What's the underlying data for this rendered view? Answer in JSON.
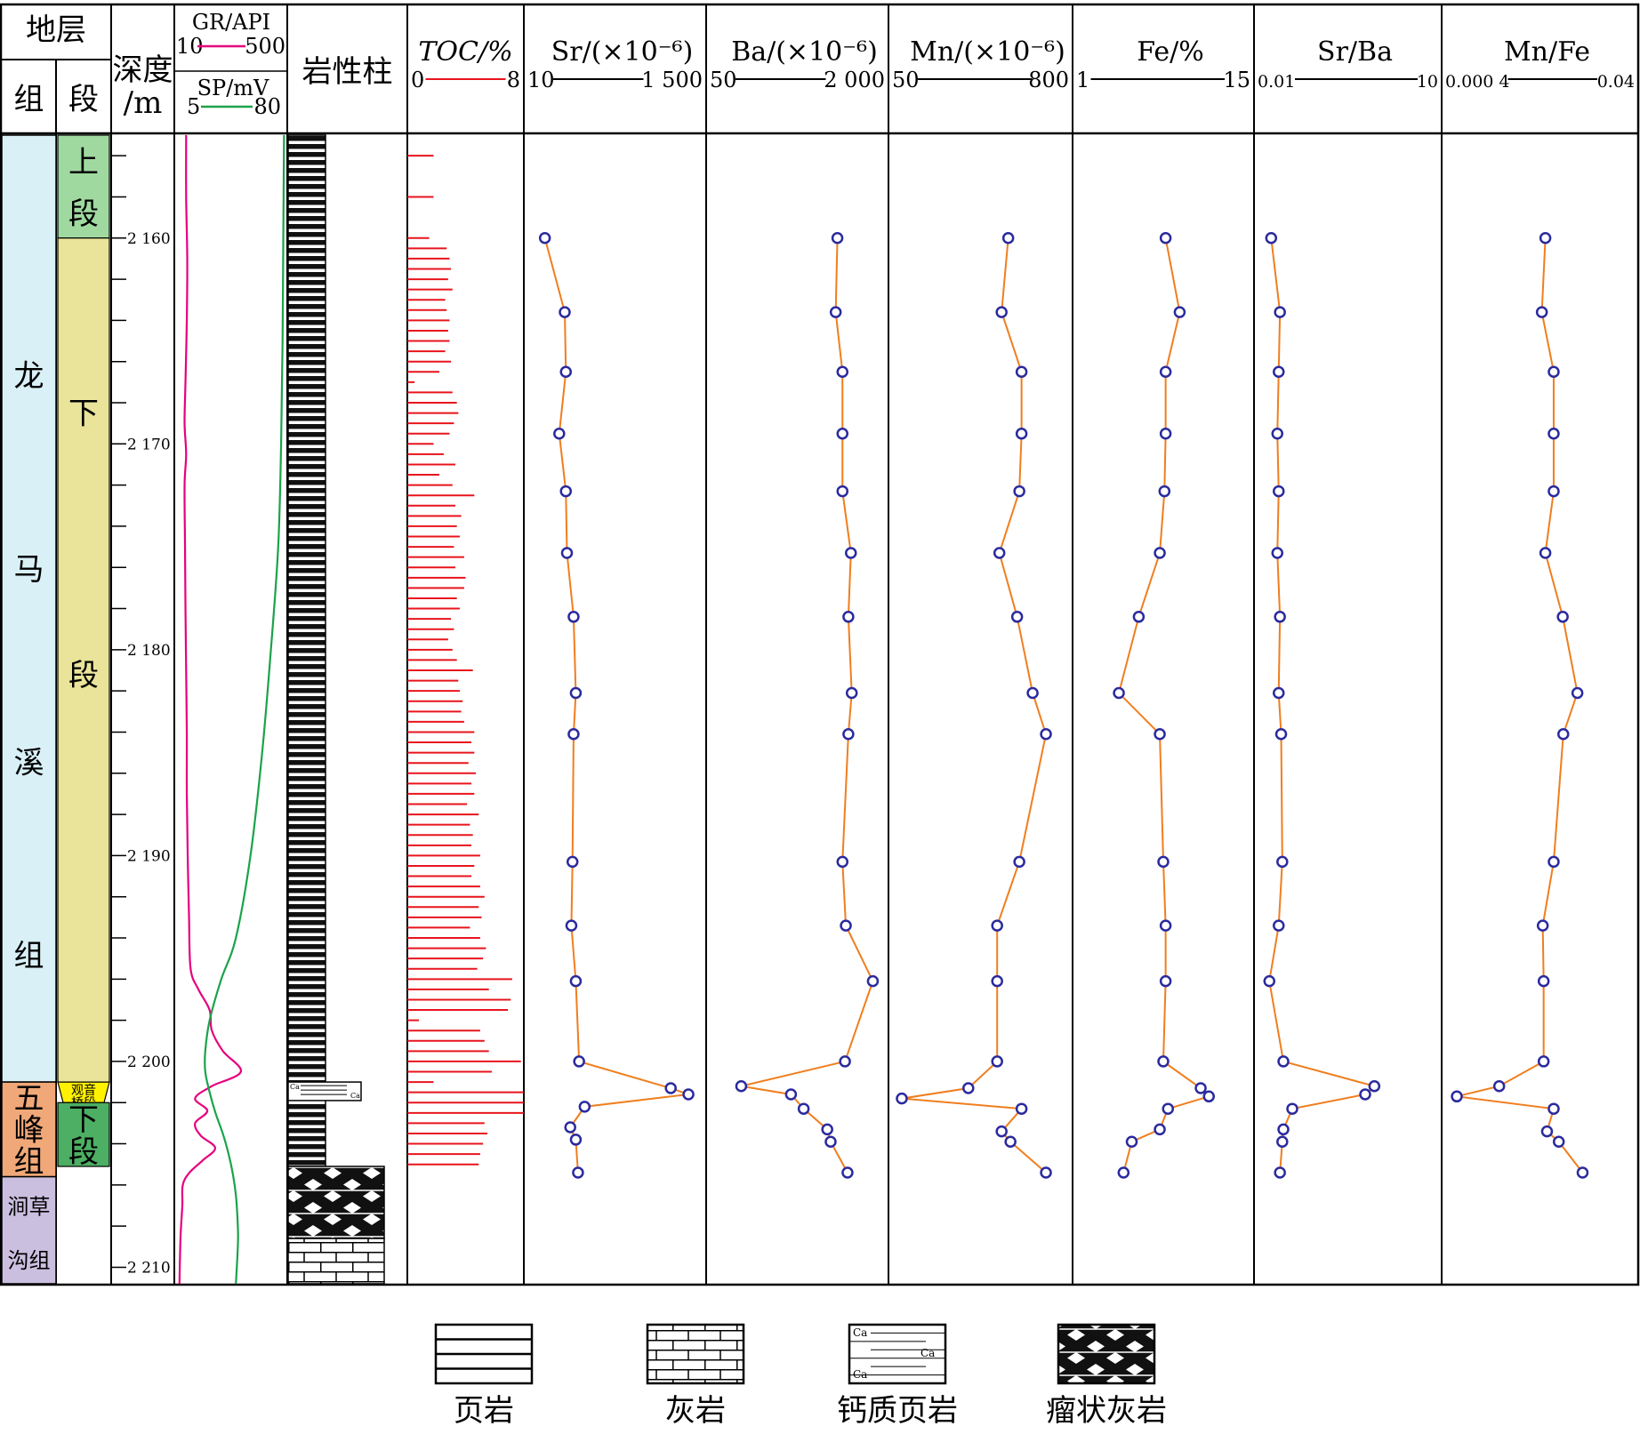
{
  "header": {
    "strata": "地层",
    "formation": "组",
    "member": "段",
    "depth": [
      "深度",
      "/m"
    ],
    "lithology_column": "岩性柱"
  },
  "logs": {
    "gr": {
      "label": "GR/API",
      "min": "10",
      "max": "500",
      "color": "#e6007e"
    },
    "sp": {
      "label": "SP/mV",
      "min": "5",
      "max": "80",
      "color": "#1aa34a"
    }
  },
  "tracks": [
    {
      "key": "toc",
      "label": "TOC/%",
      "min": "0",
      "max": "8",
      "color": "#e8141c"
    },
    {
      "key": "sr",
      "label": "Sr/(×10⁻⁶)",
      "min": "10",
      "max": "1 500"
    },
    {
      "key": "ba",
      "label": "Ba/(×10⁻⁶)",
      "min": "50",
      "max": "2 000"
    },
    {
      "key": "mn",
      "label": "Mn/(×10⁻⁶)",
      "min": "50",
      "max": "800"
    },
    {
      "key": "fe",
      "label": "Fe/%",
      "min": "1",
      "max": "15"
    },
    {
      "key": "srba",
      "label": "Sr/Ba",
      "min": "0.01",
      "max": "10"
    },
    {
      "key": "mnfe",
      "label": "Mn/Fe",
      "min": "0.000 4",
      "max": "0.04"
    }
  ],
  "colors": {
    "line": "#f07e1e",
    "marker": "#2a2a9e",
    "formation_longmaxi": "#d9f0f7",
    "formation_wufeng": "#f0a878",
    "formation_jiancaogou": "#cbbfe0",
    "member_upper": "#9fd9a0",
    "member_lower": "#e9e499",
    "member_guanyinqiao": "#fff200",
    "member_wufeng_lower": "#4caf63"
  },
  "stratigraphy": {
    "formations": [
      {
        "name": "龙马溪组",
        "chars": [
          "龙",
          "马",
          "溪",
          "组"
        ],
        "top": 2155,
        "base": 2201
      },
      {
        "name": "五峰组",
        "chars": [
          "五",
          "峰",
          "组"
        ],
        "top": 2201,
        "base": 2205.6
      },
      {
        "name": "涧草沟组",
        "chars": [
          "涧草",
          "沟组"
        ],
        "top": 2205.6,
        "base": 2210.8
      }
    ],
    "members": [
      {
        "name": "上段",
        "chars": [
          "上",
          "段"
        ],
        "top": 2155,
        "base": 2160
      },
      {
        "name": "下段",
        "chars": [
          "下",
          "段"
        ],
        "top": 2160,
        "base": 2201
      },
      {
        "name": "观音桥段",
        "chars": [
          "观音",
          "桥段"
        ],
        "top": 2201,
        "base": 2202
      },
      {
        "name": "下段",
        "chars": [
          "下",
          "段"
        ],
        "top": 2202,
        "base": 2205.1
      }
    ]
  },
  "depth_axis": {
    "min": 2155,
    "max": 2210.8,
    "labels": [
      "2 160",
      "2 170",
      "2 180",
      "2 190",
      "2 200",
      "2 210"
    ],
    "label_values": [
      2160,
      2170,
      2180,
      2190,
      2200,
      2210
    ],
    "minor_step": 2
  },
  "chart_data": [
    {
      "type": "line",
      "title": "GR/API",
      "xlim": [
        10,
        500
      ],
      "series": [
        {
          "name": "GR/API",
          "depth": [
            2155,
            2158,
            2161,
            2164,
            2167,
            2169,
            2170.5,
            2172,
            2175,
            2178,
            2181,
            2184,
            2187,
            2190,
            2193,
            2195.5,
            2196.5,
            2197.5,
            2198.5,
            2199.5,
            2200.5,
            2201.2,
            2201.8,
            2202.4,
            2203,
            2203.6,
            2204.2,
            2204.8,
            2205.4,
            2206,
            2207,
            2208.5,
            2210.8
          ],
          "values": [
            55,
            55,
            60,
            58,
            52,
            48,
            55,
            48,
            50,
            52,
            55,
            58,
            58,
            62,
            68,
            75,
            110,
            160,
            170,
            220,
            300,
            170,
            95,
            150,
            95,
            120,
            185,
            130,
            70,
            40,
            38,
            30,
            25
          ]
        }
      ]
    },
    {
      "type": "line",
      "title": "SP/mV",
      "xlim": [
        5,
        80
      ],
      "series": [
        {
          "name": "SP/mV",
          "depth": [
            2155,
            2160,
            2165,
            2170,
            2175,
            2180,
            2185,
            2190,
            2194,
            2196,
            2198,
            2199.5,
            2200.5,
            2201.5,
            2202.5,
            2203.5,
            2204.5,
            2205.5,
            2206.5,
            2207.5,
            2208.5,
            2209.5,
            2210.8
          ],
          "values": [
            79,
            78.5,
            78,
            77,
            75,
            70,
            64,
            56,
            46,
            36,
            28,
            25,
            25,
            28,
            32,
            37,
            41,
            44,
            46,
            47,
            47.5,
            47,
            46
          ]
        }
      ]
    },
    {
      "type": "bar",
      "title": "TOC/%",
      "xlim": [
        0,
        8
      ],
      "depth": [
        2156,
        2158,
        2160,
        2160.5,
        2161,
        2161.5,
        2162,
        2162.5,
        2163,
        2163.5,
        2164,
        2164.5,
        2165,
        2165.5,
        2166,
        2166.5,
        2167,
        2167.5,
        2168,
        2168.5,
        2169,
        2169.5,
        2170,
        2170.5,
        2171,
        2171.5,
        2172,
        2172.5,
        2173,
        2173.5,
        2174,
        2174.5,
        2175,
        2175.5,
        2176,
        2176.5,
        2177,
        2177.5,
        2178,
        2178.5,
        2179,
        2179.5,
        2180,
        2180.5,
        2181,
        2181.5,
        2182,
        2182.5,
        2183,
        2183.5,
        2184,
        2184.5,
        2185,
        2185.5,
        2186,
        2186.5,
        2187,
        2187.5,
        2188,
        2188.5,
        2189,
        2189.5,
        2190,
        2190.5,
        2191,
        2191.5,
        2192,
        2192.5,
        2193,
        2193.5,
        2194,
        2194.5,
        2195,
        2195.5,
        2196,
        2196.5,
        2197,
        2197.5,
        2198,
        2198.5,
        2199,
        2199.5,
        2200,
        2200.5,
        2201,
        2201.5,
        2202,
        2202.5,
        2203,
        2203.5,
        2204,
        2204.5,
        2205
      ],
      "values": [
        1.8,
        1.8,
        1.5,
        2.7,
        2.9,
        3.0,
        2.8,
        3.1,
        2.6,
        2.7,
        2.9,
        2.8,
        2.9,
        2.6,
        3.0,
        2.2,
        0.5,
        3.1,
        3.4,
        3.5,
        3.2,
        2.9,
        1.8,
        2.5,
        3.3,
        2.2,
        3.1,
        4.6,
        3.3,
        3.7,
        3.4,
        3.6,
        3.2,
        3.9,
        3.3,
        4.0,
        3.9,
        3.4,
        3.6,
        3.0,
        3.2,
        2.8,
        3.1,
        3.4,
        4.5,
        3.5,
        3.6,
        3.8,
        3.7,
        3.9,
        4.6,
        4.4,
        4.6,
        4.2,
        4.7,
        4.4,
        4.6,
        4.1,
        4.9,
        4.3,
        4.5,
        4.4,
        5.0,
        4.6,
        4.4,
        5.0,
        5.3,
        4.9,
        5.1,
        4.3,
        5.0,
        5.4,
        5.2,
        4.8,
        7.2,
        5.6,
        7.1,
        6.9,
        0.8,
        5.0,
        5.3,
        5.6,
        7.8,
        5.8,
        1.8,
        8.0,
        8.0,
        8.0,
        5.3,
        5.5,
        5.2,
        5.0,
        4.9
      ]
    },
    {
      "type": "line",
      "title": "Sr/(×10⁻⁶)",
      "xlim": [
        10,
        1500
      ],
      "series": [
        {
          "name": "Sr",
          "depth": [
            2160,
            2163.6,
            2166.5,
            2169.5,
            2172.3,
            2175.3,
            2178.4,
            2182.1,
            2184.1,
            2190.3,
            2193.4,
            2196.1,
            2200,
            2201.3,
            2201.6,
            2202.2,
            2203.2,
            2203.8,
            2205.4
          ],
          "values": [
            120,
            300,
            310,
            250,
            310,
            320,
            380,
            400,
            380,
            370,
            360,
            400,
            430,
            1260,
            1420,
            480,
            350,
            400,
            420
          ]
        }
      ]
    },
    {
      "type": "line",
      "title": "Ba/(×10⁻⁶)",
      "xlim": [
        50,
        2000
      ],
      "series": [
        {
          "name": "Ba",
          "depth": [
            2160,
            2163.6,
            2166.5,
            2169.5,
            2172.3,
            2175.3,
            2178.4,
            2182.1,
            2184.1,
            2190.3,
            2193.4,
            2196.1,
            2200,
            2201.2,
            2201.6,
            2202.3,
            2203.3,
            2203.9,
            2205.4
          ],
          "values": [
            1500,
            1480,
            1560,
            1560,
            1560,
            1660,
            1630,
            1670,
            1630,
            1560,
            1600,
            1920,
            1590,
            360,
            950,
            1100,
            1380,
            1420,
            1620
          ]
        }
      ]
    },
    {
      "type": "line",
      "title": "Mn/(×10⁻⁶)",
      "xlim": [
        50,
        800
      ],
      "series": [
        {
          "name": "Mn",
          "depth": [
            2160,
            2163.6,
            2166.5,
            2169.5,
            2172.3,
            2175.3,
            2178.4,
            2182.1,
            2184.1,
            2190.3,
            2193.4,
            2196.1,
            2200,
            2201.3,
            2201.8,
            2202.3,
            2203.4,
            2203.9,
            2205.4
          ],
          "values": [
            550,
            520,
            610,
            610,
            600,
            510,
            590,
            660,
            720,
            600,
            500,
            500,
            500,
            370,
            70,
            610,
            520,
            560,
            720
          ]
        }
      ]
    },
    {
      "type": "line",
      "title": "Fe/%",
      "xlim": [
        1,
        15
      ],
      "series": [
        {
          "name": "Fe",
          "depth": [
            2160,
            2163.6,
            2166.5,
            2169.5,
            2172.3,
            2175.3,
            2178.4,
            2182.1,
            2184.1,
            2190.3,
            2193.4,
            2196.1,
            2200,
            2201.3,
            2201.7,
            2202.3,
            2203.3,
            2203.9,
            2205.4
          ],
          "values": [
            8.2,
            9.4,
            8.2,
            8.2,
            8.1,
            7.7,
            5.9,
            4.2,
            7.7,
            8.0,
            8.2,
            8.2,
            8.0,
            11.2,
            11.9,
            8.4,
            7.7,
            5.3,
            4.6
          ]
        }
      ]
    },
    {
      "type": "line",
      "title": "Sr/Ba",
      "xlim": [
        0.01,
        10
      ],
      "series": [
        {
          "name": "Sr/Ba",
          "depth": [
            2160,
            2163.6,
            2166.5,
            2169.5,
            2172.3,
            2175.3,
            2178.4,
            2182.1,
            2184.1,
            2190.3,
            2193.4,
            2196.1,
            2200,
            2201.2,
            2201.6,
            2202.3,
            2203.3,
            2203.9,
            2205.4
          ],
          "values": [
            0.014,
            0.02,
            0.019,
            0.018,
            0.019,
            0.018,
            0.02,
            0.019,
            0.021,
            0.022,
            0.019,
            0.013,
            0.023,
            0.93,
            0.64,
            0.033,
            0.023,
            0.022,
            0.02
          ]
        }
      ]
    },
    {
      "type": "line",
      "title": "Mn/Fe",
      "xlim": [
        0.0004,
        0.04
      ],
      "series": [
        {
          "name": "Mn/Fe",
          "depth": [
            2160,
            2163.6,
            2166.5,
            2169.5,
            2172.3,
            2175.3,
            2178.4,
            2182.1,
            2184.1,
            2190.3,
            2193.4,
            2196.1,
            2200,
            2201.2,
            2201.7,
            2202.3,
            2203.4,
            2203.9,
            2205.4
          ],
          "values": [
            0.0046,
            0.0042,
            0.0057,
            0.0057,
            0.0057,
            0.0046,
            0.0072,
            0.0105,
            0.0073,
            0.0057,
            0.0043,
            0.0044,
            0.0044,
            0.0014,
            0.00047,
            0.0057,
            0.0048,
            0.0065,
            0.012
          ]
        }
      ]
    }
  ],
  "legend": [
    {
      "key": "shale",
      "label": "页岩"
    },
    {
      "key": "limestone",
      "label": "灰岩"
    },
    {
      "key": "calc_shale",
      "label": "钙质页岩"
    },
    {
      "key": "nodular_limestone",
      "label": "瘤状灰岩"
    }
  ]
}
